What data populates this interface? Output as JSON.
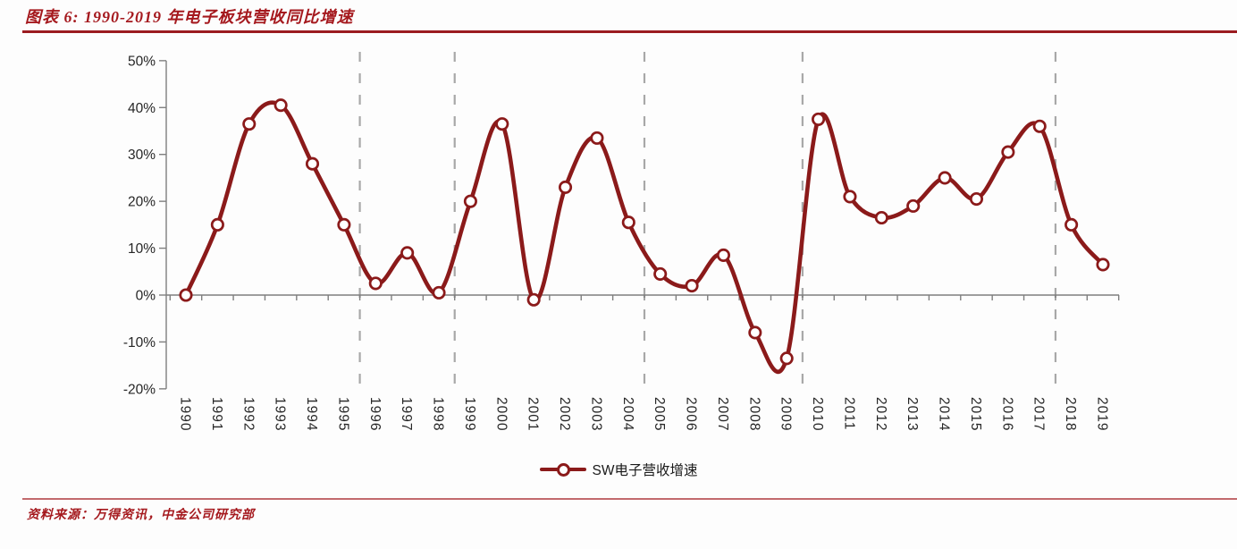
{
  "figure": {
    "label": "图表 6:",
    "title": "图表 6:  1990-2019 年电子板块营收同比增速",
    "source": "资料来源：万得资讯，中金公司研究部"
  },
  "legend": {
    "label": "SW电子营收增速",
    "marker": "open-circle-on-line"
  },
  "colors": {
    "accent_red": "#a5191e",
    "line": "#8b1a1a",
    "marker_fill": "#ffffff",
    "axis": "#7f7f7f",
    "gridline": "#a8a8a8",
    "tick_text": "#262626"
  },
  "chart_data": {
    "type": "line",
    "title": "1990-2019 年电子板块营收同比增速",
    "xlabel": "",
    "ylabel": "",
    "x": [
      1990,
      1991,
      1992,
      1993,
      1994,
      1995,
      1996,
      1997,
      1998,
      1999,
      2000,
      2001,
      2002,
      2003,
      2004,
      2005,
      2006,
      2007,
      2008,
      2009,
      2010,
      2011,
      2012,
      2013,
      2014,
      2015,
      2016,
      2017,
      2018,
      2019
    ],
    "series": [
      {
        "name": "SW电子营收增速",
        "marker": "open-circle",
        "smooth": true,
        "values": [
          0.0,
          15.0,
          36.5,
          40.5,
          28.0,
          15.0,
          2.5,
          9.0,
          0.5,
          20.0,
          36.5,
          -1.0,
          23.0,
          33.5,
          15.5,
          4.5,
          2.0,
          8.5,
          -8.0,
          -13.5,
          37.5,
          21.0,
          16.5,
          19.0,
          25.0,
          20.5,
          30.5,
          36.0,
          15.0,
          6.5
        ]
      }
    ],
    "ylim": [
      -20,
      50
    ],
    "ytick_step": 10,
    "ytick_suffix": "%",
    "x_tick_labels_rotated_vertical": true,
    "dashed_vlines_at_x": [
      1995.5,
      1998.5,
      2004.5,
      2009.5,
      2017.5
    ],
    "grid": "dashed-vertical-only",
    "legend_position": "bottom"
  }
}
